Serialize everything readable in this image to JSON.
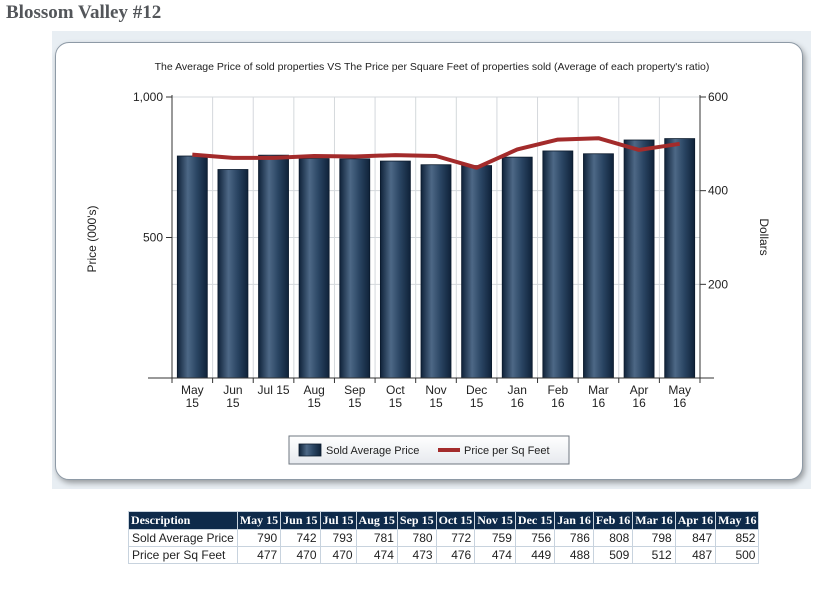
{
  "page": {
    "title": "Blossom Valley #12"
  },
  "chart_data": {
    "type": "bar+line",
    "title": "The Average Price of sold properties VS The Price per Square Feet of properties sold (Average of each property's ratio)",
    "categories": [
      [
        "May",
        "15"
      ],
      [
        "Jun",
        "15"
      ],
      [
        "Jul 15",
        ""
      ],
      [
        "Aug",
        "15"
      ],
      [
        "Sep",
        "15"
      ],
      [
        "Oct",
        "15"
      ],
      [
        "Nov",
        "15"
      ],
      [
        "Dec",
        "15"
      ],
      [
        "Jan",
        "16"
      ],
      [
        "Feb",
        "16"
      ],
      [
        "Mar",
        "16"
      ],
      [
        "Apr",
        "16"
      ],
      [
        "May",
        "16"
      ]
    ],
    "series": [
      {
        "name": "Sold Average Price",
        "type": "bar",
        "axis": "left",
        "values": [
          790,
          742,
          793,
          781,
          780,
          772,
          759,
          756,
          786,
          808,
          798,
          847,
          852
        ]
      },
      {
        "name": "Price per Sq Feet",
        "type": "line",
        "axis": "right",
        "values": [
          477,
          470,
          470,
          474,
          473,
          476,
          474,
          449,
          488,
          509,
          512,
          487,
          500
        ]
      }
    ],
    "ylabel_left": "Price (000's)",
    "ylabel_right": "Dollars",
    "ylim_left": [
      0,
      1000
    ],
    "ylim_right": [
      0,
      600
    ],
    "ticks_left": [
      "500",
      "1,000"
    ],
    "ticks_left_values": [
      500,
      1000
    ],
    "ticks_right": [
      "200",
      "400",
      "600"
    ],
    "ticks_right_values": [
      200,
      400,
      600
    ],
    "legend": [
      "Sold Average Price",
      "Price per Sq Feet"
    ],
    "legend_position": "bottom-center",
    "grid": true,
    "colors": {
      "bar": "#1d3450",
      "bar_highlight": "#4d6886",
      "line": "#a32b2b",
      "header_bg": "#0e2a4a"
    }
  },
  "table": {
    "headers": [
      "Description",
      "May 15",
      "Jun 15",
      "Jul 15",
      "Aug 15",
      "Sep 15",
      "Oct 15",
      "Nov 15",
      "Dec 15",
      "Jan 16",
      "Feb 16",
      "Mar 16",
      "Apr 16",
      "May 16"
    ],
    "rows": [
      {
        "label": "Sold Average Price",
        "values": [
          "790",
          "742",
          "793",
          "781",
          "780",
          "772",
          "759",
          "756",
          "786",
          "808",
          "798",
          "847",
          "852"
        ]
      },
      {
        "label": "Price per Sq Feet",
        "values": [
          "477",
          "470",
          "470",
          "474",
          "473",
          "476",
          "474",
          "449",
          "488",
          "509",
          "512",
          "487",
          "500"
        ]
      }
    ]
  }
}
